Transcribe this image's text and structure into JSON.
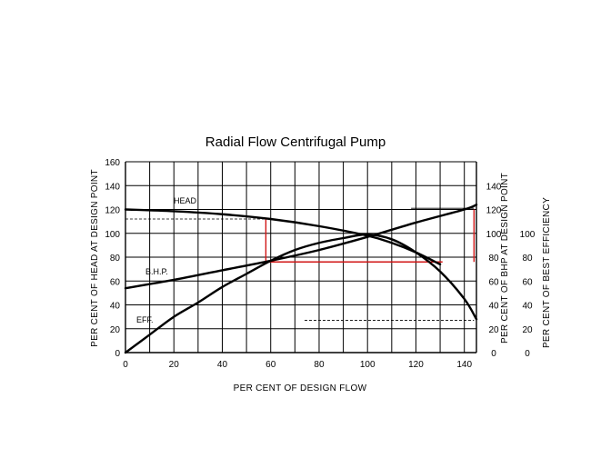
{
  "chart_data": {
    "type": "line",
    "title": "Radial Flow Centrifugal Pump",
    "xlabel": "PER CENT OF DESIGN FLOW",
    "ylabel_left": "PER CENT OF HEAD AT DESIGN POINT",
    "ylabel_right_1": "PER CENT OF BHP AT DESIGN POINT",
    "ylabel_right_2": "PER CENT OF BEST EFFICIENCY",
    "xlim": [
      0,
      145
    ],
    "ylim": [
      0,
      160
    ],
    "grid": true,
    "x_ticks": [
      0,
      20,
      40,
      60,
      80,
      100,
      120,
      140
    ],
    "y_ticks_left": [
      0,
      20,
      40,
      60,
      80,
      100,
      120,
      140,
      160
    ],
    "y_ticks_right_1": [
      0,
      20,
      40,
      60,
      80,
      100,
      120,
      140
    ],
    "y_ticks_right_2": [
      0,
      20,
      40,
      60,
      80,
      100
    ],
    "series": [
      {
        "name": "HEAD",
        "x": [
          0,
          20,
          40,
          60,
          80,
          100,
          110,
          120,
          130
        ],
        "y": [
          120,
          118.5,
          116,
          112,
          106,
          98,
          92,
          84,
          74
        ]
      },
      {
        "name": "B.H.P.",
        "x": [
          0,
          20,
          40,
          60,
          80,
          100,
          120,
          140,
          145
        ],
        "y": [
          54,
          61,
          69,
          77,
          86,
          97,
          109,
          120,
          124
        ]
      },
      {
        "name": "EFF.",
        "x": [
          0,
          10,
          20,
          30,
          40,
          50,
          60,
          70,
          80,
          90,
          100,
          110,
          120,
          130,
          140,
          145
        ],
        "y": [
          0,
          15,
          30,
          42,
          55,
          66,
          77,
          86,
          92,
          96,
          99,
          95,
          84,
          68,
          45,
          28
        ]
      }
    ],
    "annotations": {
      "red_lines": [
        {
          "x": [
            58,
            58
          ],
          "y": [
            112,
            76
          ]
        },
        {
          "x": [
            58,
            131
          ],
          "y": [
            76,
            76
          ]
        },
        {
          "x": [
            144,
            144
          ],
          "y": [
            120,
            76
          ]
        }
      ],
      "dashed_lines": [
        {
          "x": [
            0,
            58
          ],
          "y": [
            112,
            112
          ]
        },
        {
          "x": [
            74,
            144
          ],
          "y": [
            27,
            27
          ]
        }
      ],
      "thin_lines": [
        {
          "x": [
            118,
            144
          ],
          "y": [
            121,
            121
          ]
        }
      ]
    }
  }
}
